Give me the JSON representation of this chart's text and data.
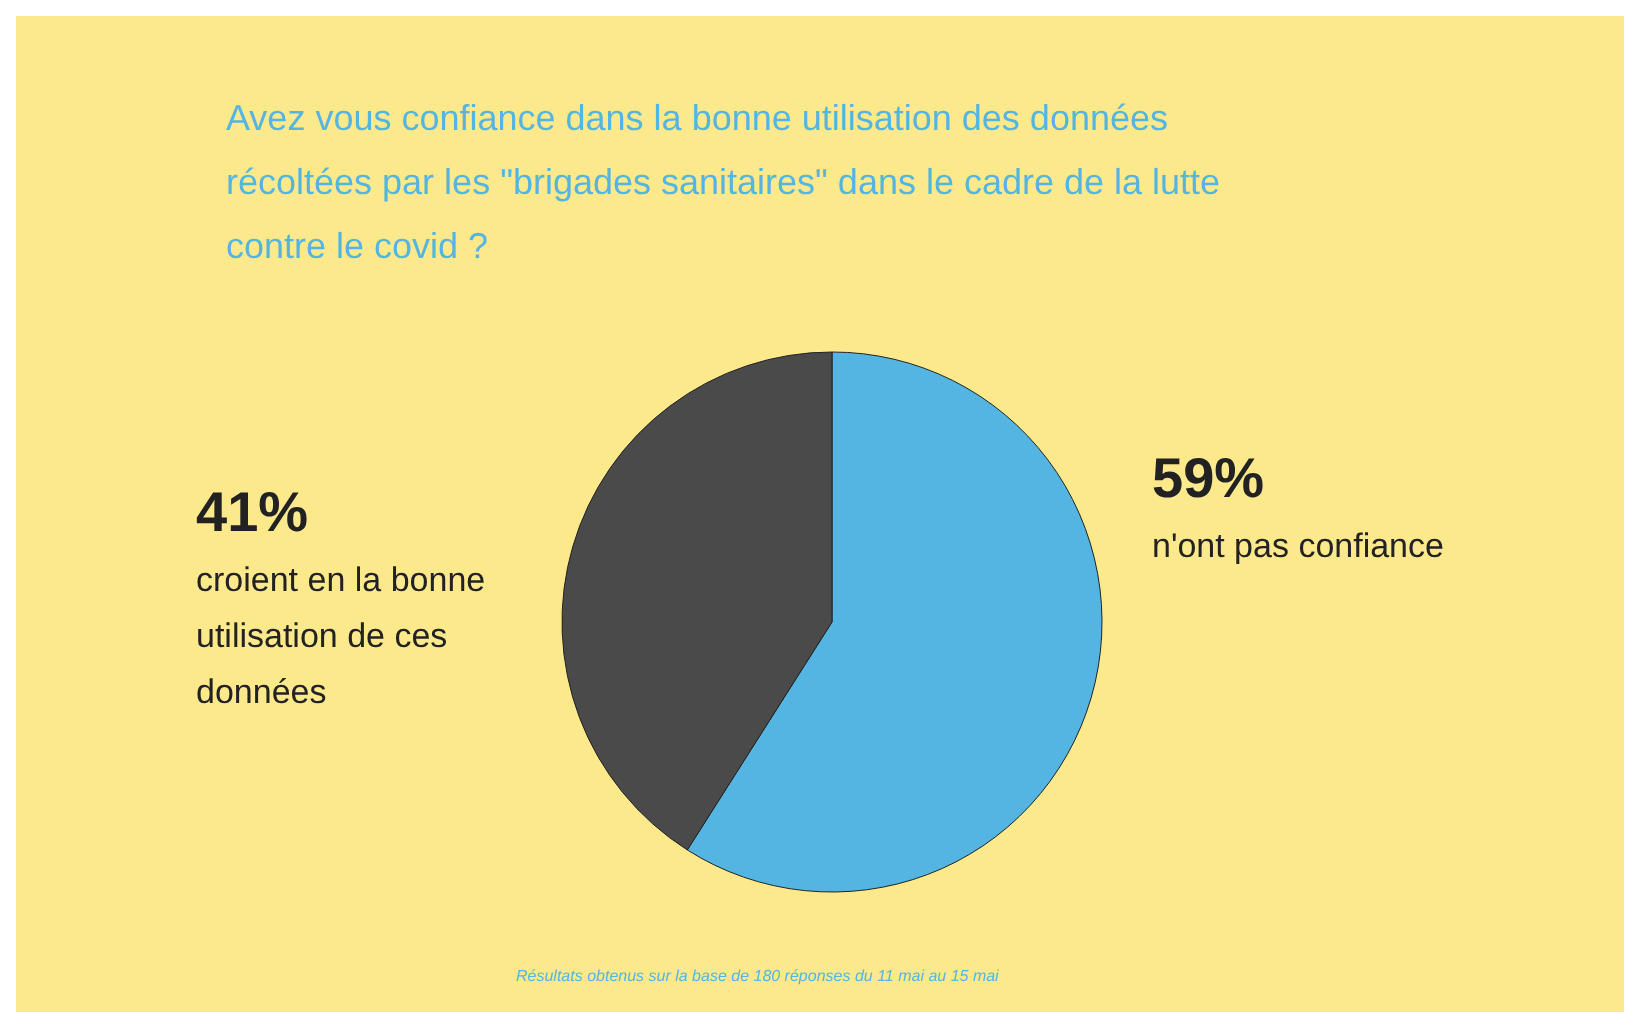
{
  "chart_data": {
    "type": "pie",
    "title": "Avez vous confiance dans la bonne utilisation des données récoltées par les \"brigades sanitaires\" dans le cadre de la lutte contre le covid ?",
    "categories": [
      "n'ont pas confiance",
      "croient en la bonne utilisation de ces données"
    ],
    "values": [
      59,
      41
    ],
    "colors": [
      "#55b5e2",
      "#4a4a4a"
    ],
    "value_labels": [
      "59%",
      "41%"
    ],
    "annotations": [
      "Résultats obtenus sur la base de 180 réponses du 11 mai au 15 mai"
    ]
  }
}
